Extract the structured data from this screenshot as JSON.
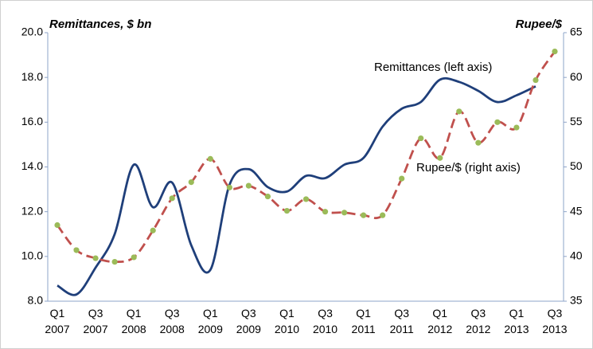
{
  "chart_data": {
    "type": "line",
    "y_title": "Remittances, $ bn",
    "y2_title": "Rupee/$",
    "categories": [
      "Q1 2007",
      null,
      "Q3 2007",
      null,
      "Q1 2008",
      null,
      "Q3 2008",
      null,
      "Q1 2009",
      null,
      "Q3 2009",
      null,
      "Q1 2010",
      null,
      "Q3 2010",
      null,
      "Q1 2011",
      null,
      "Q3 2011",
      null,
      "Q1 2012",
      null,
      "Q3 2012",
      null,
      "Q1 2013",
      null,
      "Q3 2013"
    ],
    "series": [
      {
        "name": "Remittances (left axis)",
        "color": "#1f3f7a",
        "axis": "y",
        "values": [
          8.7,
          8.3,
          9.5,
          11.0,
          14.1,
          12.2,
          13.3,
          10.5,
          9.4,
          13.2,
          13.9,
          13.1,
          12.9,
          13.6,
          13.5,
          14.1,
          14.4,
          15.8,
          16.6,
          16.9,
          17.9,
          17.8,
          17.4,
          16.9,
          17.2,
          17.6,
          null
        ]
      },
      {
        "name": "Rupee/$ (right axis)",
        "color": "#c0504d",
        "marker_color": "#9bbb59",
        "axis": "y2",
        "values": [
          43.5,
          40.7,
          39.8,
          39.4,
          39.9,
          42.9,
          46.5,
          48.3,
          50.9,
          47.7,
          47.9,
          46.7,
          45.1,
          46.4,
          45.0,
          44.9,
          44.6,
          44.6,
          48.7,
          53.2,
          51.0,
          56.2,
          52.7,
          55.0,
          54.4,
          59.7,
          62.9
        ]
      }
    ],
    "ylim": [
      8,
      20
    ],
    "yticks": [
      {
        "value": 8,
        "label": "8.0"
      },
      {
        "value": 10,
        "label": "10.0"
      },
      {
        "value": 12,
        "label": "12.0"
      },
      {
        "value": 14,
        "label": "14.0"
      },
      {
        "value": 16,
        "label": "16.0"
      },
      {
        "value": 18,
        "label": "18.0"
      },
      {
        "value": 20,
        "label": "20.0"
      }
    ],
    "y2lim": [
      35,
      65
    ],
    "y2ticks": [
      35,
      40,
      45,
      50,
      55,
      60,
      65
    ],
    "grid": false
  }
}
